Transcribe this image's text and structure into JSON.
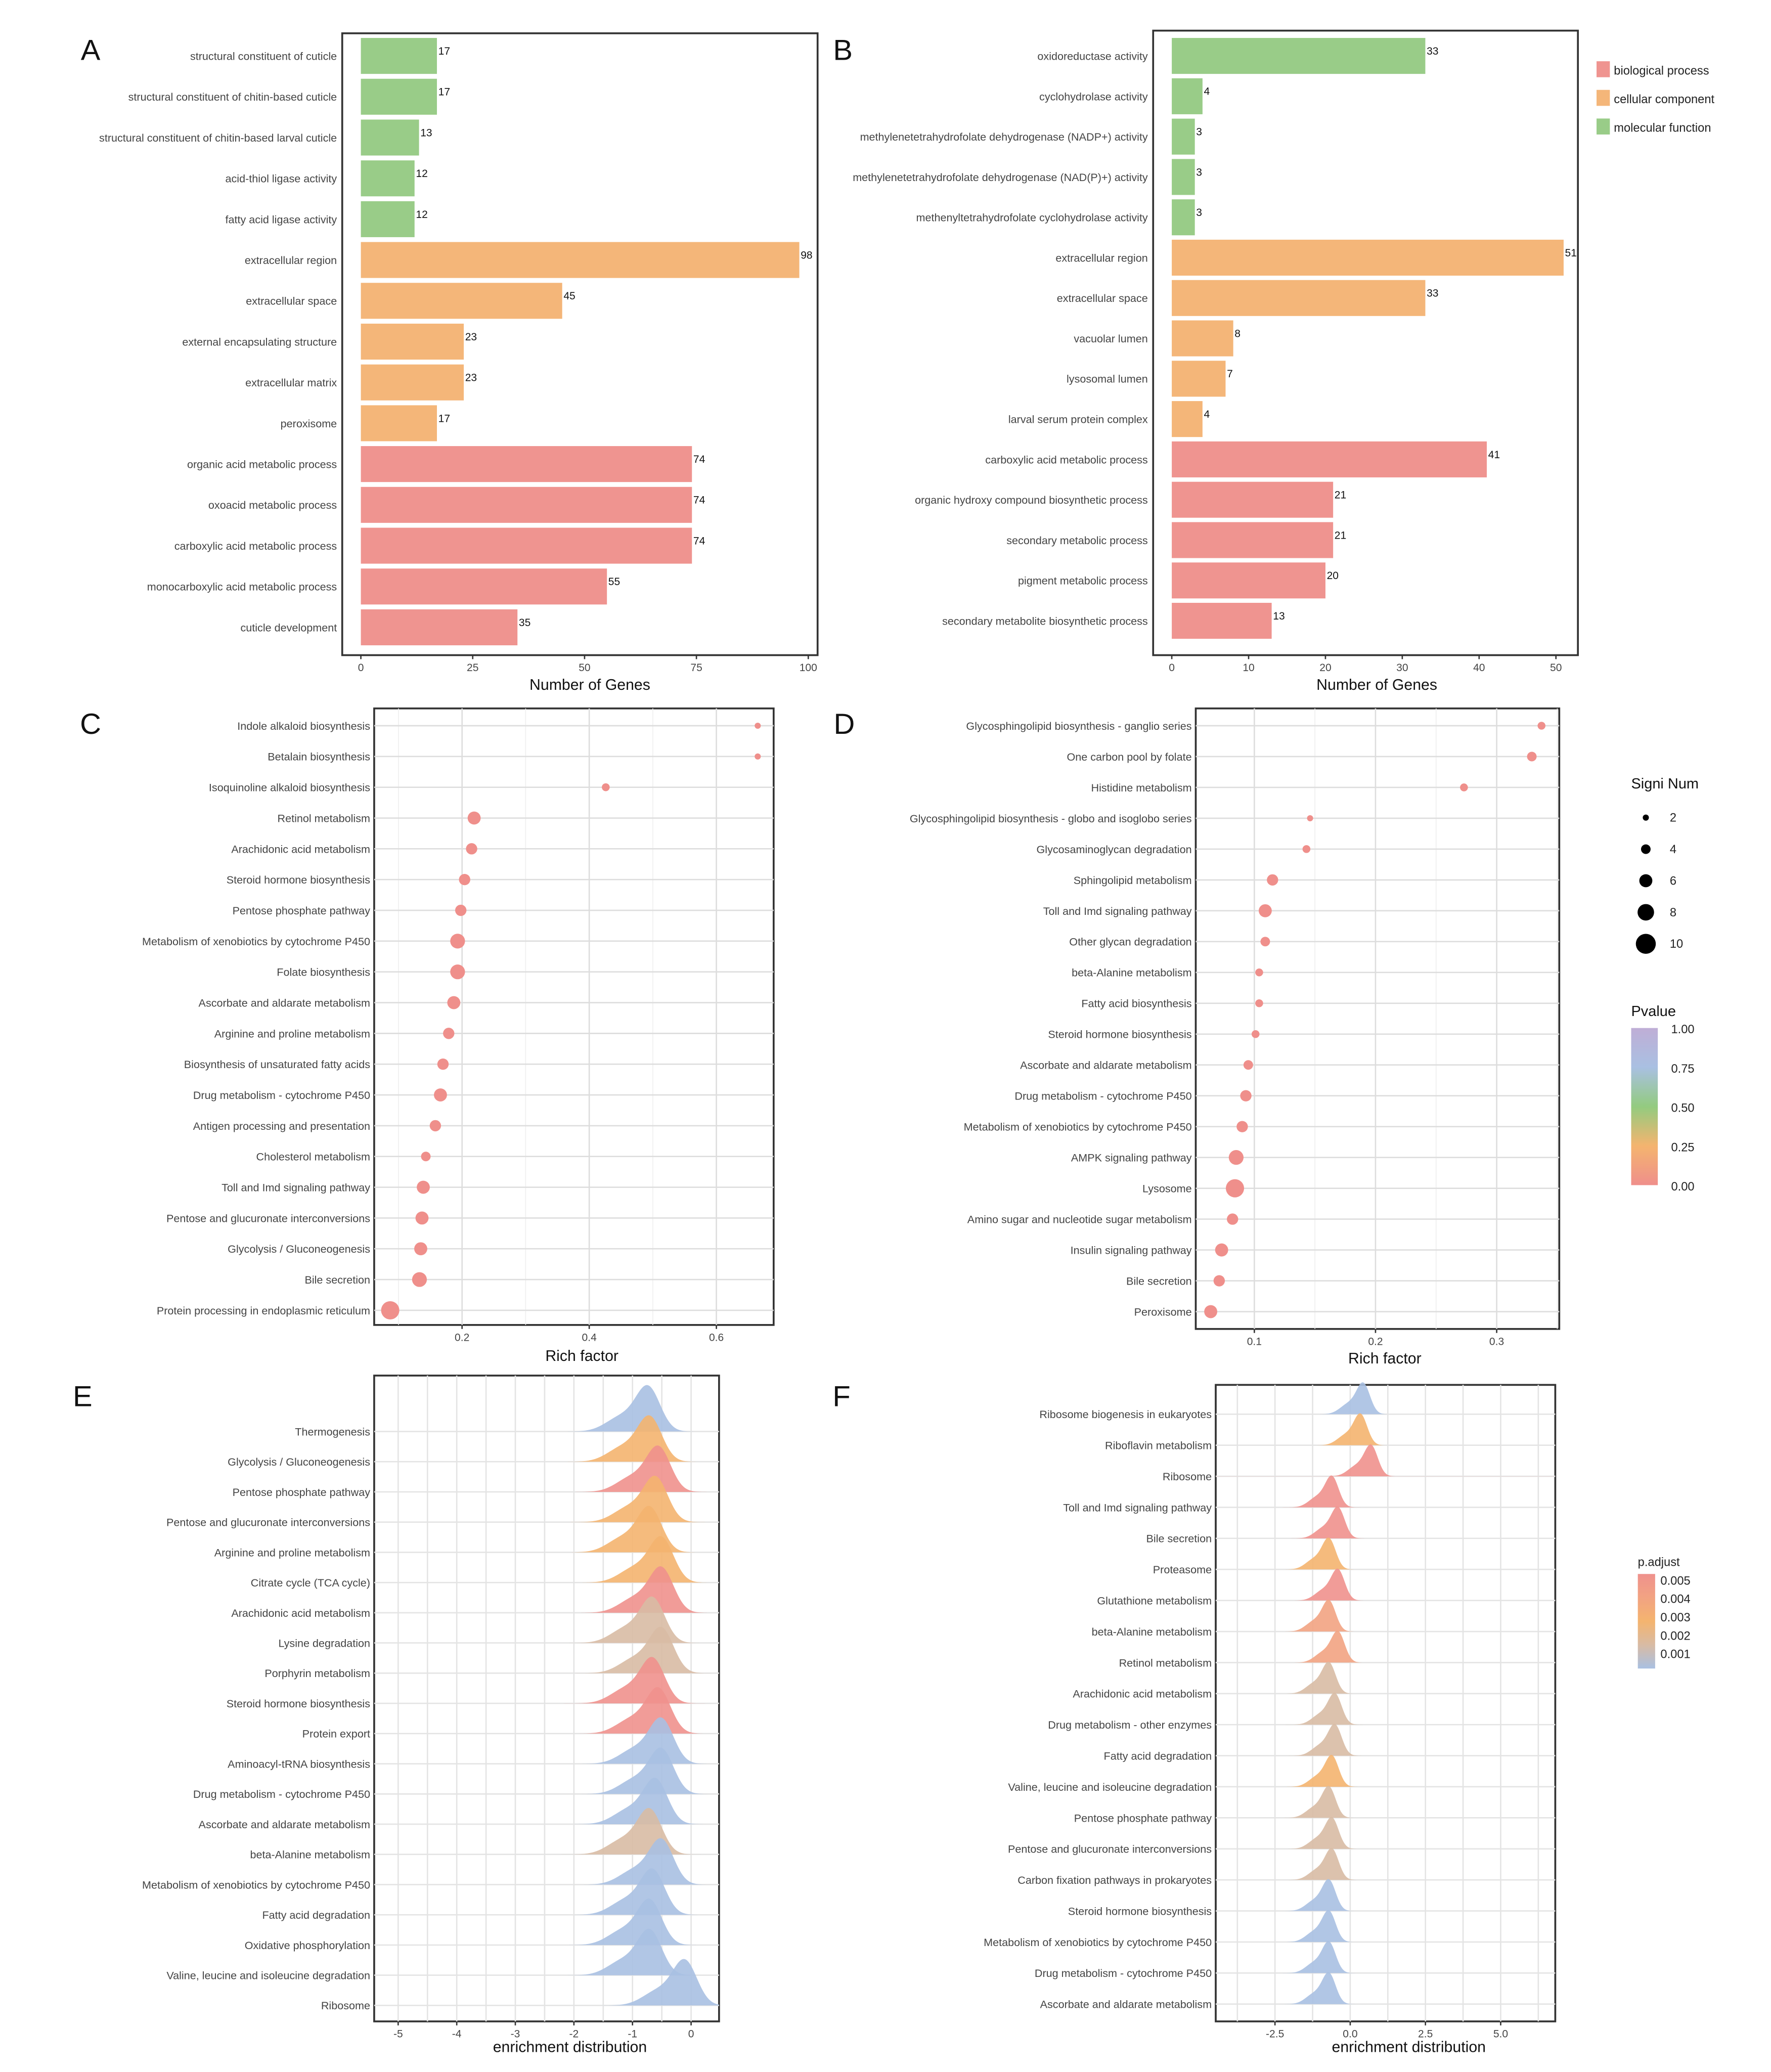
{
  "chart_data": [
    {
      "panel": "A",
      "type": "bar",
      "orientation": "horizontal",
      "xlabel": "Number of Genes",
      "xlim": [
        0,
        100
      ],
      "xticks": [
        "0",
        "25",
        "50",
        "75",
        "100"
      ],
      "xtick_values": [
        0,
        25,
        50,
        75,
        100
      ],
      "categories": [
        "structural constituent of cuticle",
        "structural constituent of chitin-based cuticle",
        "structural constituent of chitin-based larval cuticle",
        "acid-thiol ligase activity",
        "fatty acid ligase activity",
        "extracellular region",
        "extracellular space",
        "external encapsulating structure",
        "extracellular matrix",
        "peroxisome",
        "organic acid metabolic process",
        "oxoacid metabolic process",
        "carboxylic acid metabolic process",
        "monocarboxylic acid metabolic process",
        "cuticle development"
      ],
      "values": [
        17,
        17,
        13,
        12,
        12,
        98,
        45,
        23,
        23,
        17,
        74,
        74,
        74,
        55,
        35
      ],
      "value_labels": [
        "17",
        "17",
        "13",
        "12",
        "12",
        "98",
        "45",
        "23",
        "23",
        "17",
        "74",
        "74",
        "74",
        "55",
        "35"
      ],
      "groups": [
        "molecular function",
        "molecular function",
        "molecular function",
        "molecular function",
        "molecular function",
        "cellular component",
        "cellular component",
        "cellular component",
        "cellular component",
        "cellular component",
        "biological process",
        "biological process",
        "biological process",
        "biological process",
        "biological process"
      ]
    },
    {
      "panel": "B",
      "type": "bar",
      "orientation": "horizontal",
      "xlabel": "Number of Genes",
      "xlim": [
        0,
        50
      ],
      "xticks": [
        "0",
        "10",
        "20",
        "30",
        "40",
        "50"
      ],
      "xtick_values": [
        0,
        10,
        20,
        30,
        40,
        50
      ],
      "categories": [
        "oxidoreductase activity",
        "cyclohydrolase activity",
        "methylenetetrahydrofolate dehydrogenase (NADP+) activity",
        "methylenetetrahydrofolate dehydrogenase (NAD(P)+) activity",
        "methenyltetrahydrofolate cyclohydrolase activity",
        "extracellular region",
        "extracellular space",
        "vacuolar lumen",
        "lysosomal lumen",
        "larval serum protein complex",
        "carboxylic acid metabolic process",
        "organic hydroxy compound biosynthetic process",
        "secondary metabolic process",
        "pigment metabolic process",
        "secondary metabolite biosynthetic process"
      ],
      "values": [
        33,
        4,
        3,
        3,
        3,
        51,
        33,
        8,
        7,
        4,
        41,
        21,
        21,
        20,
        13
      ],
      "value_labels": [
        "33",
        "4",
        "3",
        "3",
        "3",
        "51",
        "33",
        "8",
        "7",
        "4",
        "41",
        "21",
        "21",
        "20",
        "13"
      ],
      "groups": [
        "molecular function",
        "molecular function",
        "molecular function",
        "molecular function",
        "molecular function",
        "cellular component",
        "cellular component",
        "cellular component",
        "cellular component",
        "cellular component",
        "biological process",
        "biological process",
        "biological process",
        "biological process",
        "biological process"
      ],
      "legend": {
        "position": "right",
        "entries": [
          "biological process",
          "cellular component",
          "molecular function"
        ],
        "colors": {
          "biological process": "#EF9490",
          "cellular component": "#F4B679",
          "molecular function": "#99CC88"
        }
      }
    },
    {
      "panel": "C",
      "type": "scatter",
      "xlabel": "Rich factor",
      "xticks": [
        "0.2",
        "0.4",
        "0.6"
      ],
      "xtick_values": [
        0.2,
        0.4,
        0.6
      ],
      "xlim": [
        0.06,
        0.69
      ],
      "grid": true,
      "point_color": "#EF8F8B",
      "categories": [
        "Indole alkaloid biosynthesis",
        "Betalain biosynthesis",
        "Isoquinoline alkaloid biosynthesis",
        "Retinol metabolism",
        "Arachidonic acid metabolism",
        "Steroid hormone biosynthesis",
        "Pentose phosphate pathway",
        "Metabolism of xenobiotics by cytochrome P450",
        "Folate biosynthesis",
        "Ascorbate and aldarate metabolism",
        "Arginine and proline metabolism",
        "Biosynthesis of unsaturated fatty acids",
        "Drug metabolism - cytochrome P450",
        "Antigen processing and presentation",
        "Cholesterol metabolism",
        "Toll and Imd signaling pathway",
        "Pentose and glucuronate interconversions",
        "Glycolysis / Gluconeogenesis",
        "Bile secretion",
        "Protein processing in endoplasmic reticulum"
      ],
      "rich_factor": [
        0.665,
        0.665,
        0.426,
        0.219,
        0.215,
        0.204,
        0.198,
        0.193,
        0.193,
        0.187,
        0.179,
        0.17,
        0.166,
        0.158,
        0.143,
        0.139,
        0.137,
        0.135,
        0.133,
        0.087
      ],
      "signi_num": [
        2,
        2,
        3,
        6,
        5,
        5,
        5,
        7,
        7,
        6,
        5,
        5,
        6,
        5,
        4,
        6,
        6,
        6,
        7,
        9
      ]
    },
    {
      "panel": "D",
      "type": "scatter",
      "xlabel": "Rich factor",
      "xticks": [
        "0.1",
        "0.2",
        "0.3"
      ],
      "xtick_values": [
        0.1,
        0.2,
        0.3
      ],
      "xlim": [
        0.052,
        0.352
      ],
      "grid": true,
      "point_color": "#EF8F8B",
      "categories": [
        "Glycosphingolipid biosynthesis - ganglio series",
        "One carbon pool by folate",
        "Histidine metabolism",
        "Glycosphingolipid biosynthesis - globo and isoglobo series",
        "Glycosaminoglycan degradation",
        "Sphingolipid metabolism",
        "Toll and Imd signaling pathway",
        "Other glycan degradation",
        "beta-Alanine metabolism",
        "Fatty acid biosynthesis",
        "Steroid hormone biosynthesis",
        "Ascorbate and aldarate metabolism",
        "Drug metabolism - cytochrome P450",
        "Metabolism of xenobiotics by cytochrome P450",
        "AMPK signaling pathway",
        "Lysosome",
        "Amino sugar and nucleotide sugar metabolism",
        "Insulin signaling pathway",
        "Bile secretion",
        "Peroxisome"
      ],
      "rich_factor": [
        0.337,
        0.329,
        0.273,
        0.146,
        0.143,
        0.115,
        0.109,
        0.109,
        0.104,
        0.104,
        0.101,
        0.095,
        0.093,
        0.09,
        0.085,
        0.084,
        0.082,
        0.073,
        0.071,
        0.064
      ],
      "signi_num": [
        3,
        4,
        3,
        2,
        3,
        5,
        6,
        4,
        3,
        3,
        3,
        4,
        5,
        5,
        7,
        9,
        5,
        6,
        5,
        6
      ],
      "legend": {
        "size_title": "Signi Num",
        "size_entries": [
          "2",
          "4",
          "6",
          "8",
          "10"
        ],
        "size_values": [
          2,
          4,
          6,
          8,
          10
        ],
        "color_title": "Pvalue",
        "color_ticks": [
          "1.00",
          "0.75",
          "0.50",
          "0.25",
          "0.00"
        ],
        "color_stops": [
          "#BFAED6",
          "#A9C0E2",
          "#93CB7F",
          "#F4B46F",
          "#EF8F8B"
        ]
      }
    },
    {
      "panel": "E",
      "type": "ridgeline",
      "xlabel": "enrichment distribution",
      "xticks": [
        "-5",
        "-4",
        "-3",
        "-2",
        "-1",
        "0"
      ],
      "xtick_values": [
        -5,
        -4,
        -3,
        -2,
        -1,
        0
      ],
      "xlim": [
        -5.4,
        0.5
      ],
      "grid": true,
      "categories": [
        "Thermogenesis",
        "Glycolysis / Gluconeogenesis",
        "Pentose phosphate pathway",
        "Pentose and glucuronate interconversions",
        "Arginine and proline metabolism",
        "Citrate cycle (TCA cycle)",
        "Arachidonic acid metabolism",
        "Lysine degradation",
        "Porphyrin metabolism",
        "Steroid hormone biosynthesis",
        "Protein export",
        "Aminoacyl-tRNA biosynthesis",
        "Drug metabolism - cytochrome P450",
        "Ascorbate and aldarate metabolism",
        "beta-Alanine metabolism",
        "Metabolism of xenobiotics by cytochrome P450",
        "Fatty acid degradation",
        "Oxidative phosphorylation",
        "Valine, leucine and isoleucine degradation",
        "Ribosome"
      ],
      "peak": [
        -0.73,
        -0.7,
        -0.55,
        -0.6,
        -0.7,
        -0.5,
        -0.5,
        -0.65,
        -0.5,
        -0.65,
        -0.55,
        -0.5,
        -0.5,
        -0.6,
        -0.7,
        -0.5,
        -0.65,
        -0.7,
        -0.7,
        -0.1
      ],
      "p_adjust": [
        0.001,
        0.003,
        0.005,
        0.003,
        0.003,
        0.003,
        0.005,
        0.002,
        0.002,
        0.005,
        0.005,
        0.001,
        0.001,
        0.001,
        0.002,
        0.001,
        0.001,
        0.001,
        0.001,
        0.001
      ]
    },
    {
      "panel": "F",
      "type": "ridgeline",
      "xlabel": "enrichment distribution",
      "xticks": [
        "-2.5",
        "0.0",
        "2.5",
        "5.0"
      ],
      "xtick_values": [
        -2.5,
        0,
        2.5,
        5
      ],
      "xlim": [
        -4.5,
        6.8
      ],
      "grid": true,
      "categories": [
        "Ribosome biogenesis in eukaryotes",
        "Riboflavin metabolism",
        "Ribosome",
        "Toll and Imd signaling pathway",
        "Bile secretion",
        "Proteasome",
        "Glutathione metabolism",
        "beta-Alanine metabolism",
        "Retinol metabolism",
        "Arachidonic acid metabolism",
        "Drug metabolism - other enzymes",
        "Fatty acid degradation",
        "Valine, leucine and isoleucine degradation",
        "Pentose phosphate pathway",
        "Pentose and glucuronate interconversions",
        "Carbon fixation pathways in prokaryotes",
        "Steroid hormone biosynthesis",
        "Metabolism of xenobiotics by cytochrome P450",
        "Drug metabolism - cytochrome P450",
        "Ascorbate and aldarate metabolism"
      ],
      "peak": [
        0.44,
        0.35,
        0.7,
        -0.6,
        -0.4,
        -0.7,
        -0.4,
        -0.7,
        -0.4,
        -0.7,
        -0.5,
        -0.5,
        -0.6,
        -0.7,
        -0.6,
        -0.6,
        -0.7,
        -0.7,
        -0.7,
        -0.7
      ],
      "p_adjust": [
        0.001,
        0.003,
        0.005,
        0.005,
        0.005,
        0.003,
        0.005,
        0.004,
        0.004,
        0.002,
        0.002,
        0.002,
        0.003,
        0.002,
        0.002,
        0.002,
        0.001,
        0.001,
        0.001,
        0.001
      ],
      "legend": {
        "title": "p.adjust",
        "ticks": [
          "0.005",
          "0.004",
          "0.003",
          "0.002",
          "0.001"
        ],
        "color_stops": [
          "#EF918D",
          "#F2A382",
          "#F4B46F",
          "#D8BBA4",
          "#A9C0E2"
        ]
      }
    }
  ]
}
